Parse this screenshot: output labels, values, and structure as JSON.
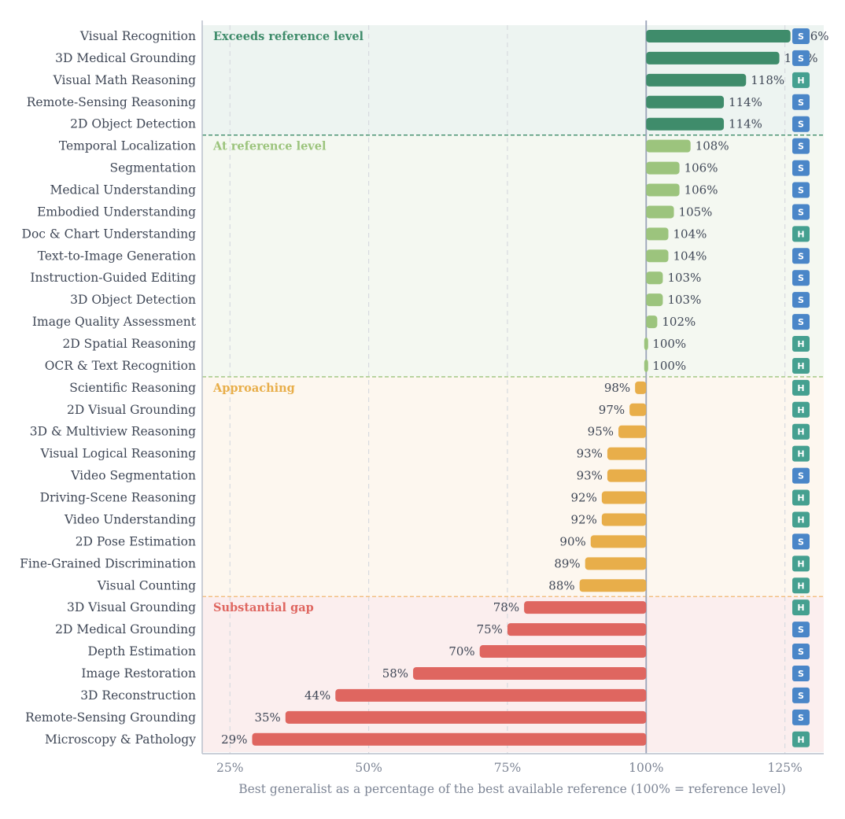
{
  "chart_data": {
    "type": "bar",
    "orientation": "horizontal",
    "xlabel": "Best generalist as a percentage of the best available reference (100% = reference level)",
    "xlim": [
      20,
      132
    ],
    "x_ticks": [
      25,
      50,
      75,
      100,
      125
    ],
    "x_tick_labels": [
      "25%",
      "50%",
      "75%",
      "100%",
      "125%"
    ],
    "reference_value": 100,
    "grid": true,
    "colors": {
      "exceeds": "#3f8c6b",
      "at": "#9cc47d",
      "approaching": "#e8ae4a",
      "gap": "#df6660",
      "badge_S": "#4a86c8",
      "badge_H": "#45a090"
    },
    "bands": [
      {
        "key": "exceeds",
        "label": "Exceeds reference level",
        "color": "#3f8c6b",
        "bg": "#edf4f1",
        "divider": "#3f8c6b"
      },
      {
        "key": "at",
        "label": "At reference level",
        "color": "#9cc47d",
        "bg": "#f4f8f1",
        "divider": "#9cc47d"
      },
      {
        "key": "approaching",
        "label": "Approaching",
        "color": "#e8ae4a",
        "bg": "#fdf7ef",
        "divider": "#f0b870"
      },
      {
        "key": "gap",
        "label": "Substantial gap",
        "color": "#df6660",
        "bg": "#fbeeee",
        "divider": null
      }
    ],
    "categories": [
      "Visual Recognition",
      "3D Medical Grounding",
      "Visual Math Reasoning",
      "Remote-Sensing Reasoning",
      "2D Object Detection",
      "Temporal Localization",
      "Segmentation",
      "Medical Understanding",
      "Embodied Understanding",
      "Doc & Chart Understanding",
      "Text-to-Image Generation",
      "Instruction-Guided Editing",
      "3D Object Detection",
      "Image Quality Assessment",
      "2D Spatial Reasoning",
      "OCR & Text Recognition",
      "Scientific Reasoning",
      "2D Visual Grounding",
      "3D & Multiview Reasoning",
      "Visual Logical Reasoning",
      "Video Segmentation",
      "Driving-Scene Reasoning",
      "Video Understanding",
      "2D Pose Estimation",
      "Fine-Grained Discrimination",
      "Visual Counting",
      "3D Visual Grounding",
      "2D Medical Grounding",
      "Depth Estimation",
      "Image Restoration",
      "3D Reconstruction",
      "Remote-Sensing Grounding",
      "Microscopy & Pathology"
    ],
    "values": [
      126,
      124,
      118,
      114,
      114,
      108,
      106,
      106,
      105,
      104,
      104,
      103,
      103,
      102,
      100,
      100,
      98,
      97,
      95,
      93,
      93,
      92,
      92,
      90,
      89,
      88,
      78,
      75,
      70,
      58,
      44,
      35,
      29
    ],
    "value_labels": [
      "126%",
      "124%",
      "118%",
      "114%",
      "114%",
      "108%",
      "106%",
      "106%",
      "105%",
      "104%",
      "104%",
      "103%",
      "103%",
      "102%",
      "100%",
      "100%",
      "98%",
      "97%",
      "95%",
      "93%",
      "93%",
      "92%",
      "92%",
      "90%",
      "89%",
      "88%",
      "78%",
      "75%",
      "70%",
      "58%",
      "44%",
      "35%",
      "29%"
    ],
    "band_of": [
      "exceeds",
      "exceeds",
      "exceeds",
      "exceeds",
      "exceeds",
      "at",
      "at",
      "at",
      "at",
      "at",
      "at",
      "at",
      "at",
      "at",
      "at",
      "at",
      "approaching",
      "approaching",
      "approaching",
      "approaching",
      "approaching",
      "approaching",
      "approaching",
      "approaching",
      "approaching",
      "approaching",
      "gap",
      "gap",
      "gap",
      "gap",
      "gap",
      "gap",
      "gap"
    ],
    "badges": [
      "S",
      "S",
      "H",
      "S",
      "S",
      "S",
      "S",
      "S",
      "S",
      "H",
      "S",
      "S",
      "S",
      "S",
      "H",
      "H",
      "H",
      "H",
      "H",
      "H",
      "S",
      "H",
      "H",
      "S",
      "H",
      "H",
      "H",
      "S",
      "S",
      "S",
      "S",
      "S",
      "H"
    ]
  }
}
